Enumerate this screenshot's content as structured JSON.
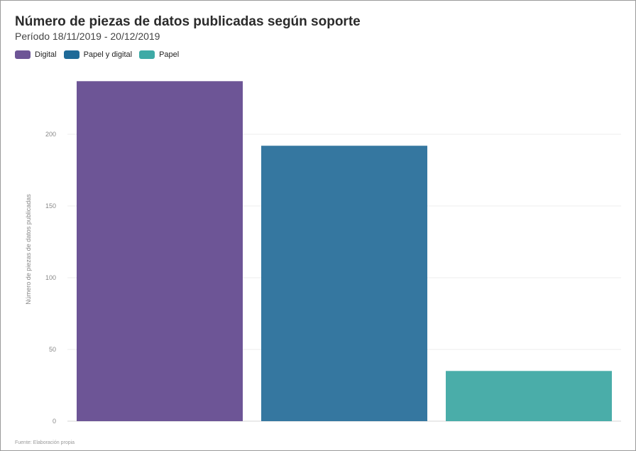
{
  "chart_data": {
    "type": "bar",
    "title": "Número de piezas de datos publicadas según soporte",
    "subtitle": "Período 18/11/2019 - 20/12/2019",
    "categories": [
      "Digital",
      "Papel y digital",
      "Papel"
    ],
    "values": [
      237,
      192,
      35
    ],
    "colors": [
      "#6d5596",
      "#3577a0",
      "#4aada9"
    ],
    "legend": [
      {
        "label": "Digital",
        "color": "#6d5596"
      },
      {
        "label": "Papel y digital",
        "color": "#1f6a98"
      },
      {
        "label": "Papel",
        "color": "#3eaaa6"
      }
    ],
    "legend_position": "top-left",
    "xlabel": "",
    "ylabel": "Número de piezas de datos publicadas",
    "yticks": [
      0,
      50,
      100,
      150,
      200
    ],
    "ylim": [
      0,
      237
    ],
    "grid": true,
    "source": "Fuente: Elaboración propia"
  }
}
